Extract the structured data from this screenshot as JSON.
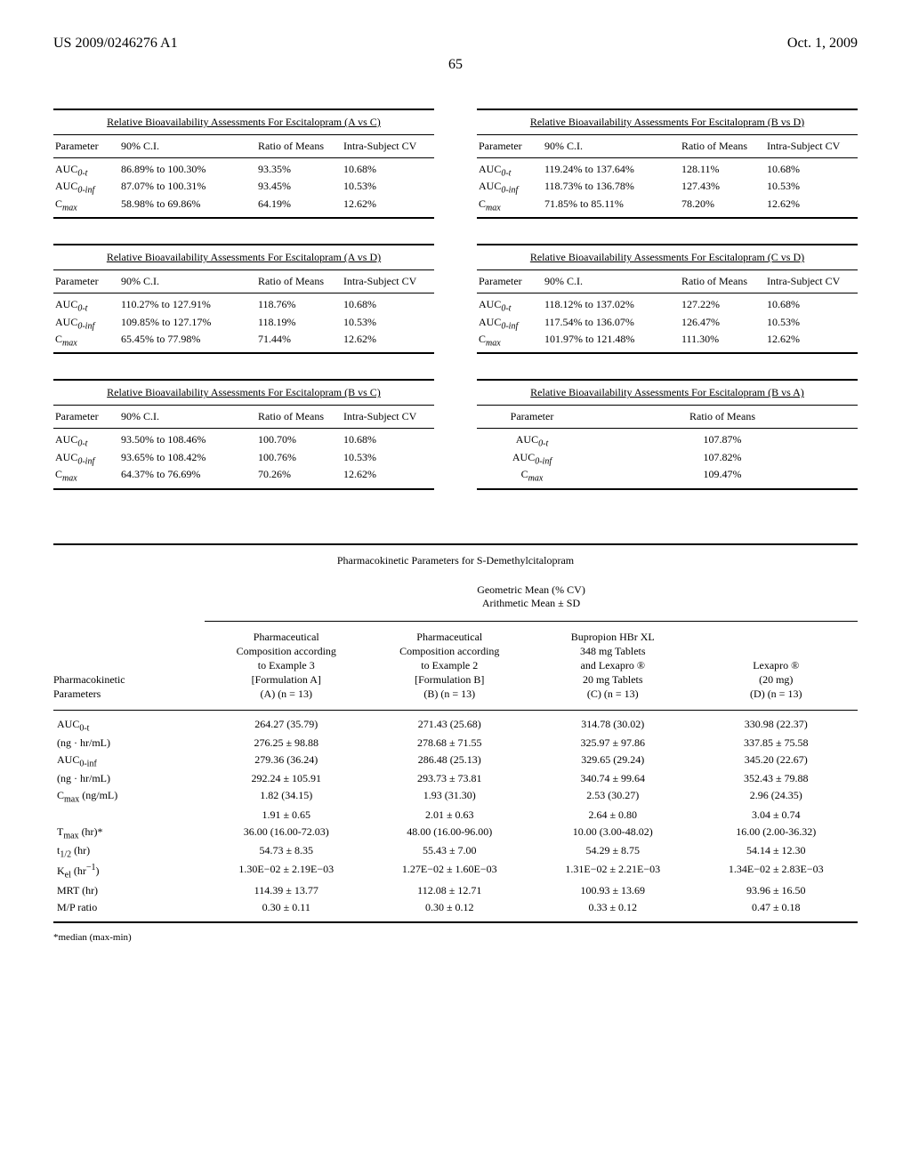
{
  "header": {
    "doc_number": "US 2009/0246276 A1",
    "date": "Oct. 1, 2009",
    "page_number": "65"
  },
  "bio_tables": [
    {
      "title": "Relative Bioavailability Assessments For Escitalopram (A vs C)",
      "columns": [
        "Parameter",
        "90% C.I.",
        "Ratio of Means",
        "Intra-Subject CV"
      ],
      "rows": [
        {
          "param": "AUC",
          "sub": "0-t",
          "ci": "86.89% to 100.30%",
          "ratio": "93.35%",
          "cv": "10.68%"
        },
        {
          "param": "AUC",
          "sub": "0-inf",
          "ci": "87.07% to 100.31%",
          "ratio": "93.45%",
          "cv": "10.53%"
        },
        {
          "param": "C",
          "sub": "max",
          "ci": "58.98% to 69.86%",
          "ratio": "64.19%",
          "cv": "12.62%"
        }
      ]
    },
    {
      "title": "Relative Bioavailability Assessments For Escitalopram (B vs D)",
      "columns": [
        "Parameter",
        "90% C.I.",
        "Ratio of Means",
        "Intra-Subject CV"
      ],
      "rows": [
        {
          "param": "AUC",
          "sub": "0-t",
          "ci": "119.24% to 137.64%",
          "ratio": "128.11%",
          "cv": "10.68%"
        },
        {
          "param": "AUC",
          "sub": "0-inf",
          "ci": "118.73% to 136.78%",
          "ratio": "127.43%",
          "cv": "10.53%"
        },
        {
          "param": "C",
          "sub": "max",
          "ci": "71.85% to 85.11%",
          "ratio": "78.20%",
          "cv": "12.62%"
        }
      ]
    },
    {
      "title": "Relative Bioavailability Assessments For Escitalopram (A vs D)",
      "columns": [
        "Parameter",
        "90% C.I.",
        "Ratio of Means",
        "Intra-Subject CV"
      ],
      "rows": [
        {
          "param": "AUC",
          "sub": "0-t",
          "ci": "110.27% to 127.91%",
          "ratio": "118.76%",
          "cv": "10.68%"
        },
        {
          "param": "AUC",
          "sub": "0-inf",
          "ci": "109.85% to 127.17%",
          "ratio": "118.19%",
          "cv": "10.53%"
        },
        {
          "param": "C",
          "sub": "max",
          "ci": "65.45% to 77.98%",
          "ratio": "71.44%",
          "cv": "12.62%"
        }
      ]
    },
    {
      "title": "Relative Bioavailability Assessments For Escitalopram (C vs D)",
      "columns": [
        "Parameter",
        "90% C.I.",
        "Ratio of Means",
        "Intra-Subject CV"
      ],
      "rows": [
        {
          "param": "AUC",
          "sub": "0-t",
          "ci": "118.12% to 137.02%",
          "ratio": "127.22%",
          "cv": "10.68%"
        },
        {
          "param": "AUC",
          "sub": "0-inf",
          "ci": "117.54% to 136.07%",
          "ratio": "126.47%",
          "cv": "10.53%"
        },
        {
          "param": "C",
          "sub": "max",
          "ci": "101.97% to 121.48%",
          "ratio": "111.30%",
          "cv": "12.62%"
        }
      ]
    },
    {
      "title": "Relative Bioavailability Assessments For Escitalopram (B vs C)",
      "columns": [
        "Parameter",
        "90% C.I.",
        "Ratio of Means",
        "Intra-Subject CV"
      ],
      "rows": [
        {
          "param": "AUC",
          "sub": "0-t",
          "ci": "93.50% to 108.46%",
          "ratio": "100.70%",
          "cv": "10.68%"
        },
        {
          "param": "AUC",
          "sub": "0-inf",
          "ci": "93.65% to 108.42%",
          "ratio": "100.76%",
          "cv": "10.53%"
        },
        {
          "param": "C",
          "sub": "max",
          "ci": "64.37% to 76.69%",
          "ratio": "70.26%",
          "cv": "12.62%"
        }
      ]
    }
  ],
  "bva_table": {
    "title": "Relative Bioavailability Assessments For Escitalopram (B vs A)",
    "columns": [
      "Parameter",
      "Ratio of Means"
    ],
    "rows": [
      {
        "param": "AUC",
        "sub": "0-t",
        "ratio": "107.87%"
      },
      {
        "param": "AUC",
        "sub": "0-inf",
        "ratio": "107.82%"
      },
      {
        "param": "C",
        "sub": "max",
        "ratio": "109.47%"
      }
    ]
  },
  "pk_table": {
    "caption": "Pharmacokinetic Parameters for S-Demethylcitalopram",
    "subhead1": "Geometric Mean (% CV)",
    "subhead2": "Arithmetic Mean ± SD",
    "row_head_l1": "Pharmacokinetic",
    "row_head_l2": "Parameters",
    "cols": [
      {
        "l1": "Pharmaceutical",
        "l2": "Composition according",
        "l3": "to Example 3",
        "l4": "[Formulation A]",
        "l5": "(A) (n = 13)"
      },
      {
        "l1": "Pharmaceutical",
        "l2": "Composition according",
        "l3": "to Example 2",
        "l4": "[Formulation B]",
        "l5": "(B) (n = 13)"
      },
      {
        "l1": "Bupropion HBr XL",
        "l2": "348 mg Tablets",
        "l3": "and Lexapro ®",
        "l4": "20 mg Tablets",
        "l5": "(C) (n = 13)"
      },
      {
        "l1": "",
        "l2": "",
        "l3": "Lexapro ®",
        "l4": "(20 mg)",
        "l5": "(D) (n = 13)"
      }
    ],
    "rows": [
      {
        "p": "AUC<sub>0-t</sub>",
        "a": "264.27  (35.79)",
        "b": "271.43  (25.68)",
        "c": "314.78  (30.02)",
        "d": "330.98  (22.37)"
      },
      {
        "p": "(ng · hr/mL)",
        "a": "276.25 ± 98.88",
        "b": "278.68 ± 71.55",
        "c": "325.97 ± 97.86",
        "d": "337.85 ± 75.58"
      },
      {
        "p": "AUC<sub>0-inf</sub>",
        "a": "279.36  (36.24)",
        "b": "286.48  (25.13)",
        "c": "329.65  (29.24)",
        "d": "345.20  (22.67)"
      },
      {
        "p": "(ng · hr/mL)",
        "a": "292.24 ± 105.91",
        "b": "293.73 ± 73.81",
        "c": "340.74 ± 99.64",
        "d": "352.43 ± 79.88"
      },
      {
        "p": "C<sub>max</sub> (ng/mL)",
        "a": "1.82  (34.15)",
        "b": "1.93  (31.30)",
        "c": "2.53  (30.27)",
        "d": "2.96  (24.35)"
      },
      {
        "p": "",
        "a": "1.91 ± 0.65",
        "b": "2.01 ± 0.63",
        "c": "2.64 ± 0.80",
        "d": "3.04 ± 0.74"
      },
      {
        "p": "T<sub>max</sub> (hr)*",
        "a": "36.00  (16.00-72.03)",
        "b": "48.00  (16.00-96.00)",
        "c": "10.00  (3.00-48.02)",
        "d": "16.00  (2.00-36.32)"
      },
      {
        "p": "t<sub>1/2</sub> (hr)",
        "a": "54.73 ± 8.35",
        "b": "55.43 ± 7.00",
        "c": "54.29 ± 8.75",
        "d": "54.14 ± 12.30"
      },
      {
        "p": "K<sub>el</sub> (hr<sup>−1</sup>)",
        "a": "1.30E−02 ± 2.19E−03",
        "b": "1.27E−02 ± 1.60E−03",
        "c": "1.31E−02 ± 2.21E−03",
        "d": "1.34E−02 ± 2.83E−03"
      },
      {
        "p": "MRT (hr)",
        "a": "114.39 ± 13.77",
        "b": "112.08 ± 12.71",
        "c": "100.93 ± 13.69",
        "d": "93.96 ± 16.50"
      },
      {
        "p": "M/P ratio",
        "a": "0.30 ± 0.11",
        "b": "0.30 ± 0.12",
        "c": "0.33 ± 0.12",
        "d": "0.47 ± 0.18"
      }
    ],
    "footnote": "*median (max-min)"
  }
}
